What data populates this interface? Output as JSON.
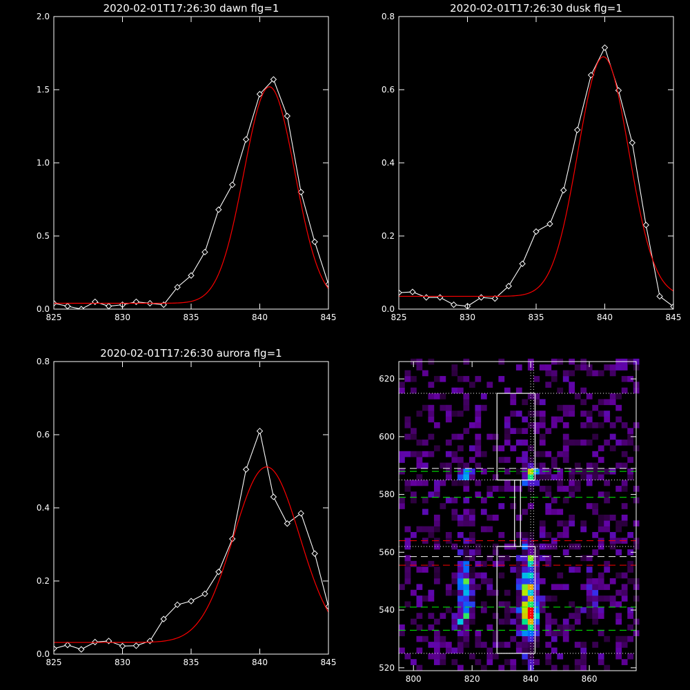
{
  "chart_data": [
    {
      "id": "dawn",
      "type": "line",
      "title": "2020-02-01T17:26:30 dawn flg=1",
      "xlim": [
        825,
        845
      ],
      "ylim": [
        0,
        2.0
      ],
      "x_ticks": [
        "825",
        "830",
        "835",
        "840",
        "845"
      ],
      "y_ticks": [
        "0.0",
        "0.5",
        "1.0",
        "1.5",
        "2.0"
      ],
      "series": [
        {
          "color": "#ffffff",
          "marker": "diamond",
          "x": [
            825,
            826,
            827,
            828,
            829,
            830,
            831,
            832,
            833,
            834,
            835,
            836,
            837,
            838,
            839,
            840,
            841,
            842,
            843,
            844,
            845
          ],
          "y": [
            0.04,
            0.02,
            0.0,
            0.05,
            0.02,
            0.03,
            0.05,
            0.04,
            0.03,
            0.15,
            0.23,
            0.39,
            0.68,
            0.85,
            1.16,
            1.47,
            1.57,
            1.32,
            0.8,
            0.46,
            0.17
          ]
        },
        {
          "color": "#ff0000",
          "marker": "none",
          "gauss": {
            "base": 0.04,
            "amp": 1.48,
            "center": 840.7,
            "sigma": 1.85
          }
        }
      ]
    },
    {
      "id": "dusk",
      "type": "line",
      "title": "2020-02-01T17:26:30 dusk flg=1",
      "xlim": [
        825,
        845
      ],
      "ylim": [
        0,
        0.8
      ],
      "x_ticks": [
        "825",
        "830",
        "835",
        "840",
        "845"
      ],
      "y_ticks": [
        "0.0",
        "0.2",
        "0.4",
        "0.6",
        "0.8"
      ],
      "series": [
        {
          "color": "#ffffff",
          "marker": "diamond",
          "x": [
            825,
            826,
            827,
            828,
            829,
            830,
            831,
            832,
            833,
            834,
            835,
            836,
            837,
            838,
            839,
            840,
            841,
            842,
            843,
            844,
            845
          ],
          "y": [
            0.045,
            0.047,
            0.032,
            0.032,
            0.012,
            0.008,
            0.032,
            0.029,
            0.063,
            0.124,
            0.212,
            0.233,
            0.325,
            0.49,
            0.64,
            0.715,
            0.598,
            0.455,
            0.23,
            0.035,
            0.007
          ]
        },
        {
          "color": "#ff0000",
          "marker": "none",
          "gauss": {
            "base": 0.035,
            "amp": 0.655,
            "center": 839.9,
            "sigma": 1.85
          }
        }
      ]
    },
    {
      "id": "aurora",
      "type": "line",
      "title": "2020-02-01T17:26:30 aurora flg=1",
      "xlim": [
        825,
        845
      ],
      "ylim": [
        0,
        0.8
      ],
      "x_ticks": [
        "825",
        "830",
        "835",
        "840",
        "845"
      ],
      "y_ticks": [
        "0.0",
        "0.2",
        "0.4",
        "0.6",
        "0.8"
      ],
      "series": [
        {
          "color": "#ffffff",
          "marker": "diamond",
          "x": [
            825,
            826,
            827,
            828,
            829,
            830,
            831,
            832,
            833,
            834,
            835,
            836,
            837,
            838,
            839,
            840,
            841,
            842,
            843,
            844,
            845
          ],
          "y": [
            0.015,
            0.025,
            0.013,
            0.033,
            0.036,
            0.022,
            0.023,
            0.036,
            0.096,
            0.135,
            0.145,
            0.165,
            0.225,
            0.315,
            0.505,
            0.61,
            0.43,
            0.357,
            0.385,
            0.275,
            0.13
          ]
        },
        {
          "color": "#ff0000",
          "marker": "none",
          "gauss": {
            "base": 0.032,
            "amp": 0.48,
            "center": 840.5,
            "sigma": 2.4
          }
        }
      ]
    },
    {
      "id": "image",
      "type": "heatmap",
      "xlim": [
        795,
        876
      ],
      "ylim": [
        519,
        626
      ],
      "x_ticks": [
        "800",
        "820",
        "840",
        "860"
      ],
      "y_ticks": [
        "520",
        "540",
        "560",
        "580",
        "600",
        "620"
      ],
      "blobs": [
        {
          "x": 817.5,
          "y": 587,
          "sx": 1.6,
          "sy": 2.0,
          "amp": 0.55
        },
        {
          "x": 839.5,
          "y": 587,
          "sx": 1.6,
          "sy": 2.6,
          "amp": 0.75
        },
        {
          "x": 863.0,
          "y": 587,
          "sx": 1.5,
          "sy": 1.3,
          "amp": 0.2
        },
        {
          "x": 817.5,
          "y": 544,
          "sx": 1.7,
          "sy": 9.0,
          "amp": 0.55
        },
        {
          "x": 839.5,
          "y": 545,
          "sx": 2.0,
          "sy": 11.0,
          "amp": 0.85
        },
        {
          "x": 839.5,
          "y": 539,
          "sx": 1.3,
          "sy": 2.5,
          "amp": 0.35
        },
        {
          "x": 861.0,
          "y": 544,
          "sx": 1.5,
          "sy": 6.0,
          "amp": 0.3
        }
      ],
      "boxes": [
        {
          "x0": 828.5,
          "x1": 841.5,
          "y0": 585,
          "y1": 615
        },
        {
          "x0": 828.5,
          "x1": 841.5,
          "y0": 525,
          "y1": 562
        },
        {
          "x0": 834.5,
          "x1": 836.5,
          "y0": 562,
          "y1": 585
        }
      ],
      "vlines": [
        {
          "x": 840,
          "color": "#ffffff",
          "style": "dotted"
        },
        {
          "x": 841,
          "color": "#ffffff",
          "style": "dotted"
        }
      ],
      "hlines": [
        {
          "y": 615,
          "color": "#ffffff",
          "style": "dotted"
        },
        {
          "y": 585,
          "color": "#ffffff",
          "style": "dotted"
        },
        {
          "y": 562,
          "color": "#ffffff",
          "style": "dotted"
        },
        {
          "y": 525,
          "color": "#ffffff",
          "style": "dotted"
        },
        {
          "y": 589,
          "color": "#ffffff",
          "style": "dashed"
        },
        {
          "y": 558.5,
          "color": "#ffffff",
          "style": "dashed"
        },
        {
          "y": 588,
          "color": "#00ff00",
          "style": "dashed"
        },
        {
          "y": 579,
          "color": "#00ff00",
          "style": "dashed"
        },
        {
          "y": 541,
          "color": "#00ff00",
          "style": "dashed"
        },
        {
          "y": 533,
          "color": "#00ff00",
          "style": "dashed"
        },
        {
          "y": 564,
          "color": "#ff0000",
          "style": "dashed"
        },
        {
          "y": 555.5,
          "color": "#ff0000",
          "style": "dashed"
        }
      ]
    }
  ]
}
